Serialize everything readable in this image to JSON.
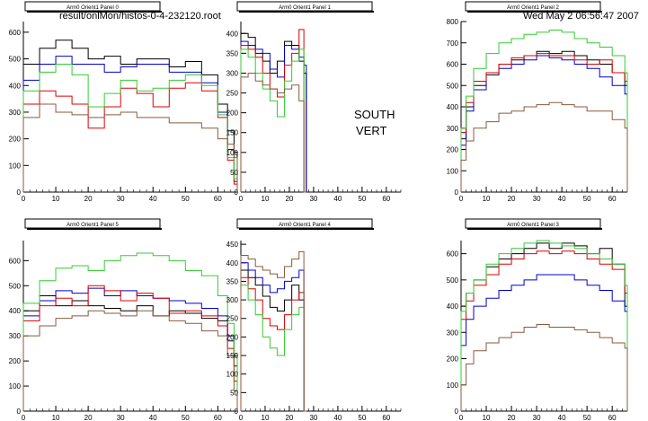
{
  "header": {
    "file_path": "result/onlMon/histos-0-4-232120.root",
    "timestamp": "Wed May  2 06:56:47 2007"
  },
  "annotation": {
    "line1": "SOUTH",
    "line2": "VERT"
  },
  "colors": {
    "black": "#000000",
    "blue": "#0000cc",
    "red": "#dd0000",
    "green": "#33cc33",
    "brown": "#8b5a3c"
  },
  "chart_data": [
    {
      "type": "line",
      "title": "Arm0 Orient1 Panel 0",
      "xlim": [
        0,
        66
      ],
      "ylim": [
        0,
        640
      ],
      "x_ticks": [
        0,
        10,
        20,
        30,
        40,
        50,
        60
      ],
      "y_ticks": [
        0,
        100,
        200,
        300,
        400,
        500,
        600
      ],
      "series": [
        {
          "color": "black",
          "x": [
            0,
            5,
            10,
            15,
            20,
            25,
            30,
            35,
            40,
            45,
            50,
            55,
            60,
            63,
            65
          ],
          "y": [
            480,
            540,
            570,
            540,
            500,
            510,
            480,
            500,
            500,
            470,
            490,
            440,
            330,
            230,
            150
          ]
        },
        {
          "color": "blue",
          "x": [
            0,
            5,
            10,
            15,
            20,
            25,
            30,
            35,
            40,
            45,
            50,
            55,
            60,
            63,
            65
          ],
          "y": [
            420,
            480,
            510,
            480,
            480,
            450,
            470,
            480,
            480,
            450,
            450,
            410,
            300,
            160,
            40
          ]
        },
        {
          "color": "red",
          "x": [
            0,
            5,
            10,
            15,
            20,
            25,
            30,
            35,
            40,
            45,
            50,
            55,
            60,
            63,
            65
          ],
          "y": [
            330,
            380,
            360,
            330,
            240,
            320,
            390,
            370,
            320,
            390,
            410,
            380,
            280,
            120,
            30
          ]
        },
        {
          "color": "green",
          "x": [
            0,
            5,
            10,
            15,
            20,
            25,
            30,
            35,
            40,
            45,
            50,
            55,
            60,
            63,
            65
          ],
          "y": [
            380,
            450,
            480,
            440,
            320,
            370,
            420,
            380,
            390,
            420,
            440,
            400,
            290,
            130,
            50
          ]
        },
        {
          "color": "brown",
          "x": [
            0,
            5,
            10,
            15,
            20,
            25,
            30,
            35,
            40,
            45,
            50,
            55,
            60,
            63,
            65
          ],
          "y": [
            280,
            330,
            300,
            290,
            280,
            290,
            300,
            280,
            280,
            260,
            260,
            240,
            200,
            180,
            130
          ]
        }
      ]
    },
    {
      "type": "line",
      "title": "Arm0 Orient1 Panel 1",
      "xlim": [
        0,
        66
      ],
      "ylim": [
        0,
        430
      ],
      "x_ticks": [
        0,
        10,
        20,
        30,
        40,
        50,
        60
      ],
      "y_ticks": [
        0,
        50,
        100,
        150,
        200,
        250,
        300,
        350,
        400
      ],
      "series": [
        {
          "color": "black",
          "x": [
            0,
            3,
            6,
            9,
            12,
            15,
            18,
            21,
            24,
            26
          ],
          "y": [
            400,
            390,
            350,
            330,
            300,
            330,
            380,
            370,
            330,
            300
          ]
        },
        {
          "color": "blue",
          "x": [
            0,
            3,
            6,
            9,
            12,
            15,
            18,
            21,
            24,
            26
          ],
          "y": [
            380,
            370,
            360,
            350,
            310,
            290,
            370,
            360,
            340,
            320
          ]
        },
        {
          "color": "red",
          "x": [
            0,
            3,
            6,
            9,
            12,
            15,
            18,
            21,
            24,
            26
          ],
          "y": [
            370,
            360,
            340,
            300,
            260,
            240,
            320,
            350,
            410,
            0
          ]
        },
        {
          "color": "green",
          "x": [
            0,
            3,
            6,
            9,
            12,
            15,
            18,
            21,
            24,
            26
          ],
          "y": [
            360,
            340,
            300,
            260,
            230,
            190,
            280,
            330,
            360,
            0
          ]
        },
        {
          "color": "brown",
          "x": [
            0,
            3,
            6,
            9,
            12,
            15,
            18,
            21,
            24,
            26
          ],
          "y": [
            290,
            300,
            280,
            270,
            260,
            250,
            260,
            270,
            230,
            0
          ]
        }
      ]
    },
    {
      "type": "line",
      "title": "Arm0 Orient1 Panel 2",
      "xlim": [
        0,
        66
      ],
      "ylim": [
        0,
        800
      ],
      "x_ticks": [
        0,
        10,
        20,
        30,
        40,
        50,
        60
      ],
      "y_ticks": [
        0,
        100,
        200,
        300,
        400,
        500,
        600,
        700,
        800
      ],
      "series": [
        {
          "color": "black",
          "x": [
            0,
            2,
            5,
            10,
            15,
            20,
            25,
            30,
            35,
            40,
            45,
            50,
            55,
            60,
            65
          ],
          "y": [
            250,
            400,
            500,
            550,
            600,
            620,
            640,
            660,
            650,
            660,
            640,
            620,
            600,
            560,
            500
          ]
        },
        {
          "color": "blue",
          "x": [
            0,
            2,
            5,
            10,
            15,
            20,
            25,
            30,
            35,
            40,
            45,
            50,
            55,
            60,
            65
          ],
          "y": [
            220,
            380,
            480,
            560,
            580,
            600,
            620,
            640,
            630,
            620,
            600,
            580,
            540,
            500,
            460
          ]
        },
        {
          "color": "red",
          "x": [
            0,
            2,
            5,
            10,
            15,
            20,
            25,
            30,
            35,
            40,
            45,
            50,
            55,
            60,
            65
          ],
          "y": [
            280,
            420,
            520,
            560,
            600,
            630,
            640,
            650,
            640,
            640,
            620,
            600,
            620,
            560,
            520
          ]
        },
        {
          "color": "green",
          "x": [
            0,
            2,
            5,
            10,
            15,
            20,
            25,
            30,
            35,
            40,
            45,
            50,
            55,
            60,
            65
          ],
          "y": [
            300,
            450,
            580,
            650,
            700,
            720,
            740,
            750,
            760,
            750,
            720,
            700,
            680,
            640,
            560
          ]
        },
        {
          "color": "brown",
          "x": [
            0,
            2,
            5,
            10,
            15,
            20,
            25,
            30,
            35,
            40,
            45,
            50,
            55,
            60,
            65
          ],
          "y": [
            150,
            240,
            300,
            330,
            370,
            380,
            400,
            410,
            420,
            410,
            400,
            380,
            380,
            340,
            300
          ]
        }
      ]
    },
    {
      "type": "line",
      "title": "Arm0 Orient1 Panel 5",
      "xlim": [
        0,
        66
      ],
      "ylim": [
        0,
        680
      ],
      "x_ticks": [
        0,
        10,
        20,
        30,
        40,
        50,
        60
      ],
      "y_ticks": [
        0,
        100,
        200,
        300,
        400,
        500,
        600
      ],
      "series": [
        {
          "color": "black",
          "x": [
            0,
            5,
            10,
            15,
            20,
            25,
            30,
            35,
            40,
            45,
            50,
            55,
            60,
            63,
            65
          ],
          "y": [
            400,
            460,
            420,
            440,
            420,
            410,
            400,
            420,
            380,
            400,
            390,
            370,
            360,
            280,
            180
          ]
        },
        {
          "color": "blue",
          "x": [
            0,
            5,
            10,
            15,
            20,
            25,
            30,
            35,
            40,
            45,
            50,
            55,
            60,
            63,
            65
          ],
          "y": [
            380,
            440,
            480,
            470,
            490,
            460,
            480,
            460,
            450,
            440,
            430,
            410,
            380,
            300,
            220
          ]
        },
        {
          "color": "red",
          "x": [
            0,
            5,
            10,
            15,
            20,
            25,
            30,
            35,
            40,
            45,
            50,
            55,
            60,
            63,
            65
          ],
          "y": [
            360,
            420,
            450,
            420,
            500,
            480,
            440,
            470,
            450,
            390,
            400,
            380,
            340,
            250,
            120
          ]
        },
        {
          "color": "green",
          "x": [
            0,
            5,
            10,
            15,
            20,
            25,
            30,
            35,
            40,
            45,
            50,
            55,
            60,
            63,
            65
          ],
          "y": [
            430,
            520,
            570,
            580,
            560,
            600,
            620,
            630,
            620,
            600,
            560,
            540,
            460,
            350,
            230
          ]
        },
        {
          "color": "brown",
          "x": [
            0,
            5,
            10,
            15,
            20,
            25,
            30,
            35,
            40,
            45,
            50,
            55,
            60,
            63,
            65
          ],
          "y": [
            300,
            340,
            370,
            380,
            400,
            390,
            380,
            400,
            380,
            360,
            350,
            320,
            300,
            220,
            80
          ]
        }
      ]
    },
    {
      "type": "line",
      "title": "Arm0 Orient1 Panel 4",
      "xlim": [
        0,
        66
      ],
      "ylim": [
        0,
        460
      ],
      "x_ticks": [
        0,
        10,
        20,
        30,
        40,
        50,
        60
      ],
      "y_ticks": [
        0,
        50,
        100,
        150,
        200,
        250,
        300,
        350,
        400,
        450
      ],
      "series": [
        {
          "color": "black",
          "x": [
            0,
            3,
            6,
            9,
            12,
            15,
            18,
            21,
            24,
            26
          ],
          "y": [
            380,
            360,
            340,
            310,
            280,
            270,
            300,
            340,
            300,
            0
          ]
        },
        {
          "color": "blue",
          "x": [
            0,
            3,
            6,
            9,
            12,
            15,
            18,
            21,
            24,
            26
          ],
          "y": [
            400,
            380,
            360,
            340,
            320,
            330,
            350,
            360,
            380,
            0
          ]
        },
        {
          "color": "red",
          "x": [
            0,
            3,
            6,
            9,
            12,
            15,
            18,
            21,
            24,
            26
          ],
          "y": [
            360,
            330,
            300,
            250,
            230,
            220,
            260,
            300,
            320,
            0
          ]
        },
        {
          "color": "green",
          "x": [
            0,
            3,
            6,
            9,
            12,
            15,
            18,
            21,
            24,
            26
          ],
          "y": [
            340,
            300,
            260,
            200,
            170,
            150,
            220,
            260,
            280,
            0
          ]
        },
        {
          "color": "brown",
          "x": [
            0,
            3,
            6,
            9,
            12,
            15,
            18,
            21,
            24,
            26
          ],
          "y": [
            420,
            410,
            390,
            380,
            370,
            360,
            390,
            410,
            430,
            0
          ]
        }
      ]
    },
    {
      "type": "line",
      "title": "Arm0 Orient1 Panel 3",
      "xlim": [
        0,
        66
      ],
      "ylim": [
        0,
        650
      ],
      "x_ticks": [
        0,
        10,
        20,
        30,
        40,
        50,
        60
      ],
      "y_ticks": [
        0,
        100,
        200,
        300,
        400,
        500,
        600
      ],
      "series": [
        {
          "color": "black",
          "x": [
            0,
            2,
            5,
            10,
            15,
            20,
            25,
            30,
            35,
            40,
            45,
            50,
            55,
            60,
            65
          ],
          "y": [
            400,
            450,
            500,
            550,
            580,
            600,
            620,
            640,
            620,
            640,
            630,
            600,
            620,
            560,
            400
          ]
        },
        {
          "color": "blue",
          "x": [
            0,
            2,
            5,
            10,
            15,
            20,
            25,
            30,
            35,
            40,
            45,
            50,
            55,
            60,
            65
          ],
          "y": [
            250,
            350,
            400,
            430,
            460,
            480,
            500,
            520,
            520,
            520,
            500,
            480,
            460,
            420,
            380
          ]
        },
        {
          "color": "red",
          "x": [
            0,
            2,
            5,
            10,
            15,
            20,
            25,
            30,
            35,
            40,
            45,
            50,
            55,
            60,
            65
          ],
          "y": [
            350,
            420,
            480,
            520,
            560,
            580,
            600,
            610,
            600,
            610,
            600,
            580,
            560,
            540,
            450
          ]
        },
        {
          "color": "green",
          "x": [
            0,
            2,
            5,
            10,
            15,
            20,
            25,
            30,
            35,
            40,
            45,
            50,
            55,
            60,
            65
          ],
          "y": [
            380,
            450,
            500,
            560,
            600,
            620,
            640,
            650,
            640,
            630,
            620,
            600,
            580,
            560,
            480
          ]
        },
        {
          "color": "brown",
          "x": [
            0,
            2,
            5,
            10,
            15,
            20,
            25,
            30,
            35,
            40,
            45,
            50,
            55,
            60,
            65
          ],
          "y": [
            100,
            180,
            230,
            260,
            280,
            300,
            320,
            330,
            320,
            320,
            310,
            300,
            280,
            260,
            240
          ]
        }
      ]
    }
  ]
}
